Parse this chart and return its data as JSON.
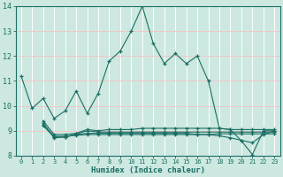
{
  "xlabel": "Humidex (Indice chaleur)",
  "bg_color": "#cce8e0",
  "line_color": "#1a6e64",
  "grid_color": "#f0c8c8",
  "xlim": [
    -0.5,
    23.5
  ],
  "ylim": [
    8,
    14
  ],
  "yticks": [
    8,
    9,
    10,
    11,
    12,
    13,
    14
  ],
  "xticks": [
    0,
    1,
    2,
    3,
    4,
    5,
    6,
    7,
    8,
    9,
    10,
    11,
    12,
    13,
    14,
    15,
    16,
    17,
    18,
    19,
    20,
    21,
    22,
    23
  ],
  "line1_x": [
    0,
    1,
    2,
    3,
    4,
    5,
    6,
    7,
    8,
    9,
    10,
    11,
    12,
    13,
    14,
    15,
    16,
    17,
    18,
    19,
    20,
    21,
    22,
    23
  ],
  "line1_y": [
    11.2,
    9.9,
    10.3,
    9.5,
    9.8,
    10.6,
    9.7,
    10.5,
    11.8,
    12.2,
    13.0,
    14.0,
    12.5,
    11.7,
    12.1,
    11.7,
    12.0,
    11.0,
    9.1,
    9.05,
    8.6,
    8.05,
    9.0,
    9.0
  ],
  "line2_x": [
    2,
    3,
    4,
    5,
    6,
    7,
    8,
    9,
    10,
    11,
    12,
    13,
    14,
    15,
    16,
    17,
    18,
    19,
    20,
    21,
    22,
    23
  ],
  "line2_y": [
    9.4,
    8.85,
    8.85,
    8.9,
    9.05,
    9.0,
    9.05,
    9.05,
    9.05,
    9.1,
    9.1,
    9.1,
    9.1,
    9.1,
    9.1,
    9.1,
    9.1,
    9.05,
    9.05,
    9.05,
    9.05,
    9.05
  ],
  "line3_x": [
    2,
    3,
    4,
    5,
    6,
    7,
    8,
    9,
    10,
    11,
    12,
    13,
    14,
    15,
    16,
    17,
    18,
    19,
    20,
    21,
    22,
    23
  ],
  "line3_y": [
    9.3,
    8.75,
    8.75,
    8.85,
    8.9,
    8.9,
    8.9,
    8.9,
    8.9,
    8.9,
    8.9,
    8.9,
    8.9,
    8.9,
    8.85,
    8.85,
    8.8,
    8.72,
    8.62,
    8.52,
    8.85,
    9.0
  ],
  "line4_x": [
    2,
    3,
    4,
    5,
    6,
    7,
    8,
    9,
    10,
    11,
    12,
    13,
    14,
    15,
    16,
    17,
    18,
    19,
    20,
    21,
    22,
    23
  ],
  "line4_y": [
    9.25,
    8.72,
    8.75,
    8.88,
    9.0,
    8.95,
    8.95,
    8.95,
    8.95,
    8.95,
    8.95,
    8.95,
    8.95,
    8.95,
    8.95,
    8.95,
    8.95,
    8.95,
    8.95,
    8.95,
    8.95,
    8.95
  ],
  "line5_x": [
    2,
    3,
    4,
    5,
    6,
    7,
    8,
    9,
    10,
    11,
    12,
    13,
    14,
    15,
    16,
    17,
    18,
    19,
    20,
    21,
    22,
    23
  ],
  "line5_y": [
    9.2,
    8.78,
    8.78,
    8.82,
    8.85,
    8.85,
    8.85,
    8.85,
    8.85,
    8.85,
    8.85,
    8.85,
    8.85,
    8.85,
    8.85,
    8.85,
    8.88,
    8.88,
    8.88,
    8.88,
    8.88,
    8.88
  ]
}
